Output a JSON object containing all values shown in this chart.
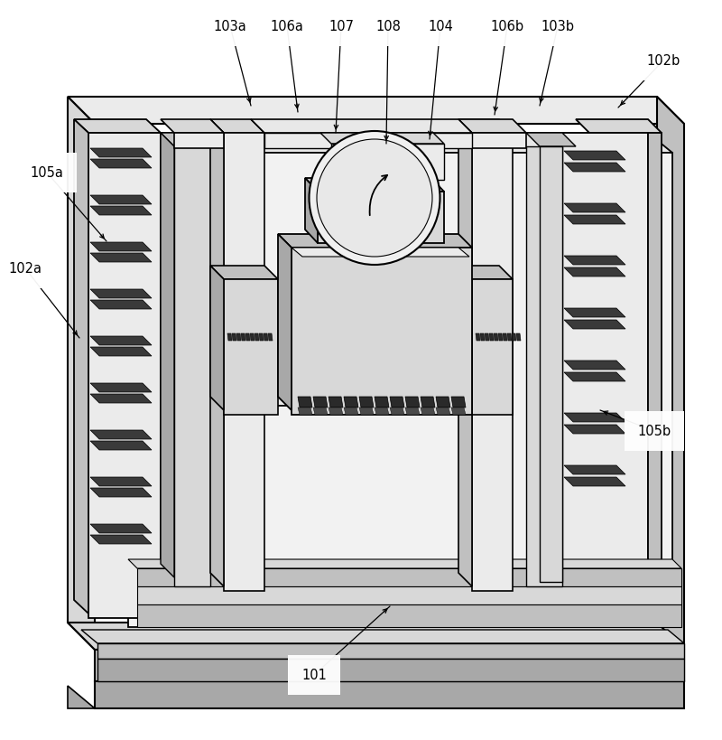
{
  "bg_color": "#ffffff",
  "lc": "#000000",
  "labels": [
    [
      "103a",
      255,
      30,
      278,
      118
    ],
    [
      "106a",
      318,
      30,
      330,
      125
    ],
    [
      "107",
      378,
      30,
      372,
      148
    ],
    [
      "108",
      430,
      30,
      428,
      160
    ],
    [
      "104",
      488,
      30,
      476,
      155
    ],
    [
      "106b",
      562,
      30,
      548,
      128
    ],
    [
      "103b",
      618,
      30,
      598,
      118
    ],
    [
      "102b",
      735,
      68,
      685,
      120
    ],
    [
      "105a",
      52,
      192,
      118,
      268
    ],
    [
      "102a",
      28,
      298,
      88,
      375
    ],
    [
      "105b",
      725,
      478,
      665,
      455
    ],
    [
      "101",
      348,
      748,
      432,
      672
    ]
  ]
}
